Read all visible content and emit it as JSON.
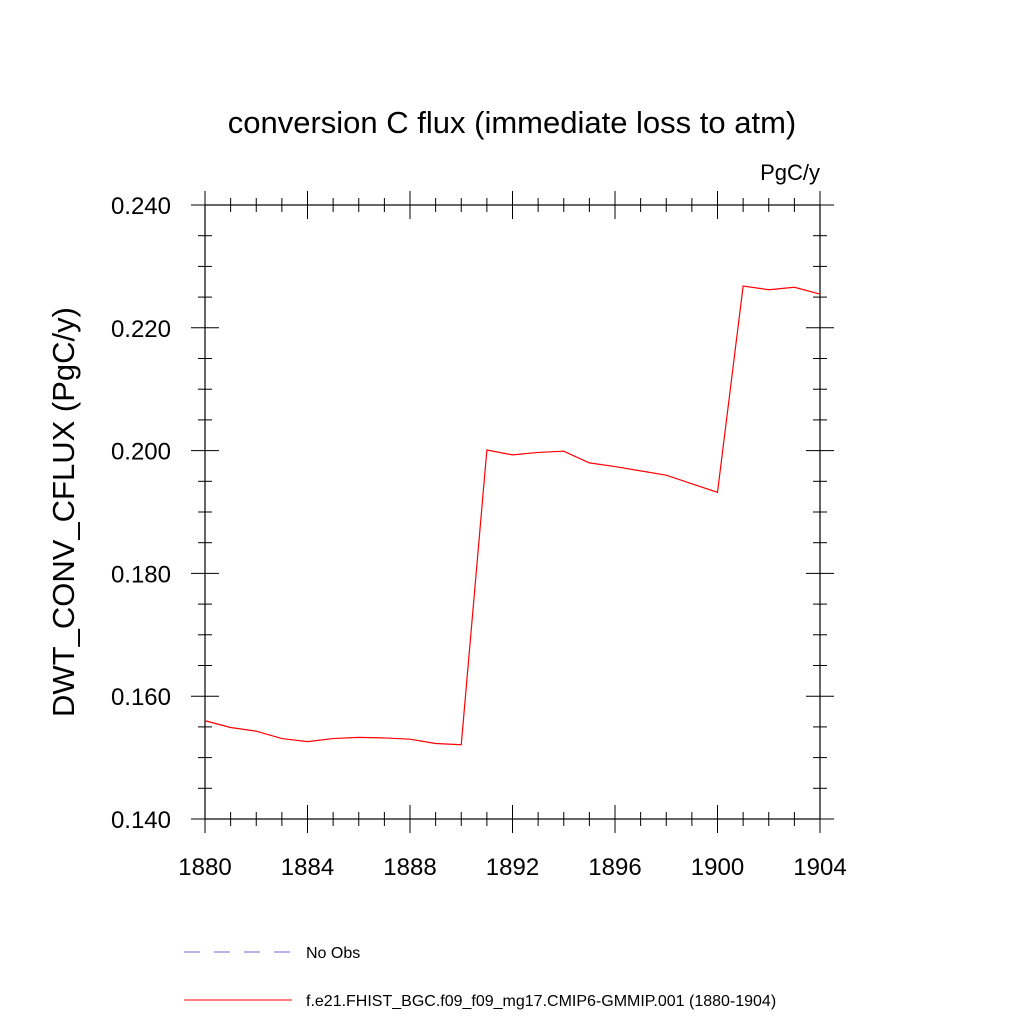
{
  "chart_data": {
    "type": "line",
    "title": "conversion C flux (immediate loss to atm)",
    "units_label": "PgC/y",
    "ylabel": "DWT_CONV_CFLUX  (PgC/y)",
    "xlabel": "",
    "xlim": [
      1880,
      1904
    ],
    "ylim": [
      0.14,
      0.24
    ],
    "x_ticks": [
      1880,
      1884,
      1888,
      1892,
      1896,
      1900,
      1904
    ],
    "x_tick_labels": [
      "1880",
      "1884",
      "1888",
      "1892",
      "1896",
      "1900",
      "1904"
    ],
    "y_ticks": [
      0.14,
      0.16,
      0.18,
      0.2,
      0.22,
      0.24
    ],
    "y_tick_labels": [
      "0.140",
      "0.160",
      "0.180",
      "0.200",
      "0.220",
      "0.240"
    ],
    "grid": false,
    "legend_position": "bottom",
    "series": [
      {
        "name": "f.e21.FHIST_BGC.f09_f09_mg17.CMIP6-GMMIP.001 (1880-1904)",
        "color": "#ff0000",
        "dash": "solid",
        "x": [
          1880,
          1881,
          1882,
          1883,
          1884,
          1885,
          1886,
          1887,
          1888,
          1889,
          1890,
          1891,
          1892,
          1893,
          1894,
          1895,
          1896,
          1897,
          1898,
          1899,
          1900,
          1901,
          1902,
          1903,
          1904
        ],
        "values": [
          0.156,
          0.1549,
          0.1543,
          0.1531,
          0.1526,
          0.1531,
          0.1533,
          0.1532,
          0.153,
          0.1523,
          0.1521,
          0.2001,
          0.1993,
          0.1997,
          0.1999,
          0.198,
          0.1974,
          0.1967,
          0.196,
          0.1946,
          0.1932,
          0.2268,
          0.2262,
          0.2266,
          0.2255
        ]
      }
    ],
    "legend": [
      {
        "label": "No Obs",
        "color": "#6b6bd6",
        "dash": "dashed"
      },
      {
        "label": "f.e21.FHIST_BGC.f09_f09_mg17.CMIP6-GMMIP.001 (1880-1904)",
        "color": "#ff0000",
        "dash": "solid"
      }
    ]
  }
}
